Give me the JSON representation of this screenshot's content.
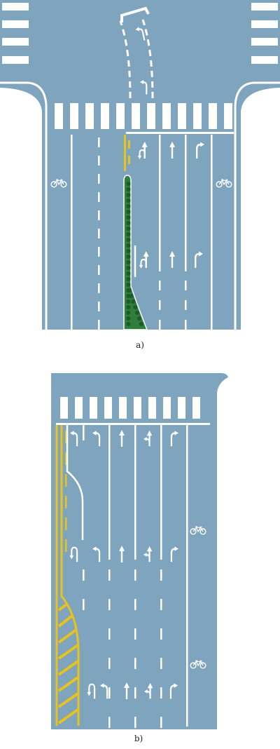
{
  "colors": {
    "road": "#7FA4BE",
    "marking": "#FFFFFF",
    "yellow": "#E8C21E",
    "green": "#2F7E3C",
    "green_dot": "#1E5A2A"
  },
  "figure_a": {
    "caption": "a)",
    "arrows_near_stop": [
      "u-turn-left",
      "straight",
      "straight",
      "right"
    ],
    "arrows_far": [
      "u-turn-left",
      "straight",
      "right"
    ],
    "bike_left_icon": "bicycle-icon",
    "bike_right_icon": "bicycle-icon",
    "guide_arrows": [
      "left-turn",
      "left-turn"
    ]
  },
  "figure_b": {
    "caption": "b)",
    "arrows_near_stop": [
      "left",
      "left",
      "straight",
      "straight-left",
      "right"
    ],
    "arrows_mid": [
      "u-turn-left",
      "left",
      "straight",
      "straight-left",
      "right"
    ],
    "arrows_far": [
      "u-turn-left",
      "left",
      "straight",
      "straight-left",
      "right"
    ],
    "bike_icons": [
      "bicycle-icon",
      "bicycle-icon"
    ]
  }
}
